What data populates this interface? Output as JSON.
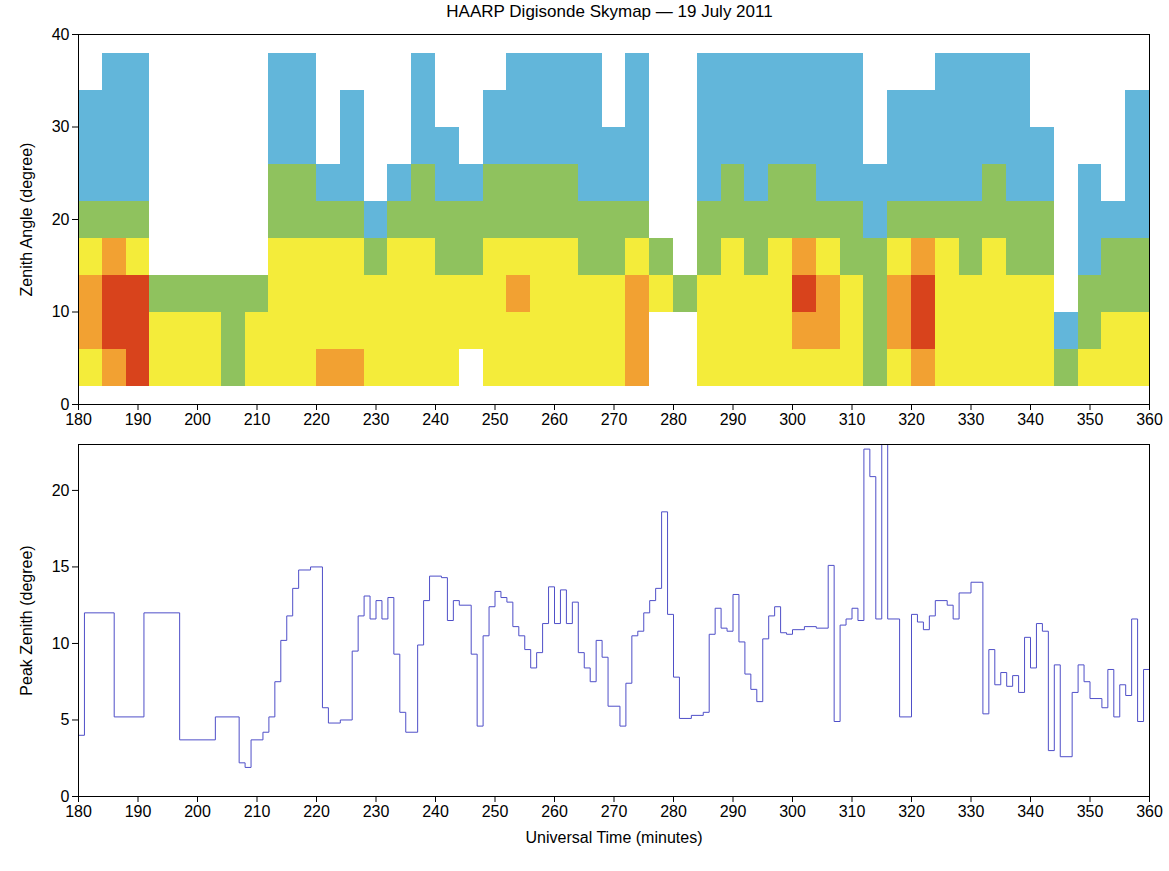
{
  "chart_data": [
    {
      "type": "heatmap",
      "title": "HAARP Digisonde Skymap — 19 July 2011",
      "ylabel": "Zenith Angle (degree)",
      "xlim": [
        180,
        360
      ],
      "xticks": [
        180,
        190,
        200,
        210,
        220,
        230,
        240,
        250,
        260,
        270,
        280,
        290,
        300,
        310,
        320,
        330,
        340,
        350,
        360
      ],
      "ylim": [
        0,
        40
      ],
      "yticks": [
        0,
        10,
        20,
        30,
        40
      ],
      "x_edges": [
        180,
        184,
        188,
        192,
        196,
        200,
        204,
        208,
        212,
        216,
        220,
        224,
        228,
        232,
        236,
        240,
        244,
        248,
        252,
        256,
        260,
        264,
        268,
        272,
        276,
        280,
        284,
        288,
        292,
        296,
        300,
        304,
        308,
        312,
        316,
        320,
        324,
        328,
        332,
        336,
        340,
        344,
        348,
        352,
        356,
        360
      ],
      "y_edges": [
        2,
        6,
        10,
        14,
        18,
        22,
        26,
        30,
        34,
        38
      ],
      "color_levels": [
        1,
        2,
        3,
        4,
        5
      ],
      "colors": [
        "#62b6da",
        "#8fc25e",
        "#f4ec3a",
        "#f2a132",
        "#d8431c"
      ],
      "cells": [
        [
          3,
          4,
          4,
          3,
          2,
          1,
          1,
          1,
          null
        ],
        [
          4,
          5,
          5,
          4,
          2,
          1,
          1,
          1,
          1
        ],
        [
          5,
          5,
          5,
          3,
          2,
          1,
          1,
          1,
          1
        ],
        [
          3,
          3,
          2,
          null,
          null,
          null,
          null,
          null,
          null
        ],
        [
          3,
          3,
          2,
          null,
          null,
          null,
          null,
          null,
          null
        ],
        [
          3,
          3,
          2,
          null,
          null,
          null,
          null,
          null,
          null
        ],
        [
          2,
          2,
          2,
          null,
          null,
          null,
          null,
          null,
          null
        ],
        [
          3,
          3,
          2,
          null,
          null,
          null,
          null,
          null,
          null
        ],
        [
          3,
          3,
          3,
          3,
          2,
          2,
          1,
          1,
          1
        ],
        [
          3,
          3,
          3,
          3,
          2,
          2,
          1,
          1,
          1
        ],
        [
          4,
          3,
          3,
          3,
          2,
          1,
          null,
          null,
          null
        ],
        [
          4,
          3,
          3,
          3,
          2,
          1,
          1,
          1,
          null
        ],
        [
          3,
          3,
          3,
          2,
          1,
          null,
          null,
          null,
          null
        ],
        [
          3,
          3,
          3,
          3,
          2,
          1,
          null,
          null,
          null
        ],
        [
          3,
          3,
          3,
          3,
          2,
          2,
          1,
          1,
          1
        ],
        [
          3,
          3,
          3,
          2,
          2,
          1,
          1,
          null,
          null
        ],
        [
          null,
          3,
          3,
          2,
          2,
          1,
          null,
          null,
          null
        ],
        [
          3,
          3,
          3,
          3,
          2,
          2,
          1,
          1,
          null
        ],
        [
          3,
          3,
          4,
          3,
          2,
          2,
          1,
          1,
          1
        ],
        [
          3,
          3,
          3,
          3,
          2,
          2,
          1,
          1,
          1
        ],
        [
          3,
          3,
          3,
          3,
          2,
          2,
          1,
          1,
          1
        ],
        [
          3,
          3,
          3,
          2,
          2,
          1,
          1,
          1,
          1
        ],
        [
          3,
          3,
          3,
          2,
          2,
          1,
          1,
          null,
          null
        ],
        [
          4,
          4,
          4,
          3,
          2,
          1,
          1,
          1,
          1
        ],
        [
          null,
          null,
          3,
          2,
          null,
          null,
          null,
          null,
          null
        ],
        [
          null,
          null,
          2,
          null,
          null,
          null,
          null,
          null,
          null
        ],
        [
          3,
          3,
          3,
          2,
          2,
          1,
          1,
          1,
          1
        ],
        [
          3,
          3,
          3,
          3,
          2,
          2,
          1,
          1,
          1
        ],
        [
          3,
          3,
          3,
          2,
          2,
          1,
          1,
          1,
          1
        ],
        [
          3,
          3,
          3,
          3,
          2,
          2,
          1,
          1,
          1
        ],
        [
          3,
          4,
          5,
          4,
          2,
          2,
          1,
          1,
          1
        ],
        [
          3,
          4,
          4,
          3,
          2,
          1,
          1,
          1,
          1
        ],
        [
          3,
          3,
          3,
          2,
          2,
          1,
          1,
          1,
          1
        ],
        [
          2,
          2,
          2,
          2,
          1,
          1,
          null,
          null,
          null
        ],
        [
          3,
          4,
          4,
          3,
          2,
          1,
          1,
          1,
          null
        ],
        [
          4,
          5,
          5,
          4,
          2,
          1,
          1,
          1,
          null
        ],
        [
          3,
          3,
          3,
          3,
          2,
          1,
          1,
          1,
          1
        ],
        [
          3,
          3,
          3,
          2,
          2,
          1,
          1,
          1,
          1
        ],
        [
          3,
          3,
          3,
          3,
          2,
          2,
          1,
          1,
          1
        ],
        [
          3,
          3,
          3,
          2,
          2,
          1,
          1,
          1,
          1
        ],
        [
          3,
          3,
          3,
          2,
          2,
          1,
          1,
          null,
          null
        ],
        [
          2,
          1,
          null,
          null,
          null,
          null,
          null,
          null,
          null
        ],
        [
          3,
          2,
          2,
          1,
          1,
          1,
          null,
          null,
          null
        ],
        [
          3,
          3,
          2,
          2,
          1,
          null,
          null,
          null,
          null
        ],
        [
          3,
          3,
          2,
          2,
          1,
          1,
          1,
          1,
          null
        ]
      ]
    },
    {
      "type": "line",
      "line_style": "step",
      "color": "#4f4fc8",
      "xlabel": "Universal Time (minutes)",
      "ylabel": "Peak Zenith (degree)",
      "xlim": [
        180,
        360
      ],
      "xticks": [
        180,
        190,
        200,
        210,
        220,
        230,
        240,
        250,
        260,
        270,
        280,
        290,
        300,
        310,
        320,
        330,
        340,
        350,
        360
      ],
      "ylim": [
        0,
        23
      ],
      "yticks": [
        0,
        5,
        10,
        15,
        20
      ],
      "x": [
        180,
        181,
        186,
        191,
        197,
        203,
        207,
        208,
        209,
        211,
        212,
        213,
        214,
        215,
        216,
        217,
        219,
        221,
        222,
        224,
        226,
        227,
        228,
        229,
        230,
        231,
        232,
        233,
        234,
        235,
        237,
        238,
        239,
        241,
        242,
        243,
        244,
        246,
        247,
        248,
        249,
        250,
        251,
        252,
        253,
        254,
        255,
        256,
        257,
        258,
        259,
        260,
        261,
        262,
        263,
        264,
        265,
        266,
        267,
        268,
        269,
        271,
        272,
        273,
        274,
        275,
        276,
        277,
        278,
        279,
        280,
        281,
        283,
        285,
        286,
        287,
        288,
        289,
        290,
        291,
        292,
        293,
        294,
        295,
        296,
        297,
        298,
        299,
        300,
        302,
        304,
        306,
        307,
        308,
        309,
        310,
        311,
        312,
        313,
        314,
        315,
        316,
        318,
        320,
        321,
        322,
        323,
        324,
        326,
        327,
        328,
        330,
        332,
        333,
        334,
        335,
        336,
        337,
        338,
        339,
        340,
        341,
        342,
        343,
        344,
        345,
        347,
        348,
        349,
        350,
        352,
        353,
        354,
        355,
        356,
        357,
        358,
        359,
        360
      ],
      "values": [
        4,
        12,
        5.2,
        12,
        3.7,
        5.2,
        2.2,
        1.9,
        3.7,
        4.2,
        5.2,
        7.5,
        10.2,
        11.8,
        13.6,
        14.8,
        15,
        5.8,
        4.8,
        5,
        9.5,
        11.8,
        13.1,
        11.6,
        12.8,
        11.6,
        13,
        9.3,
        5.5,
        4.2,
        9.9,
        12.8,
        14.4,
        14.3,
        11.5,
        12.8,
        12.5,
        9.3,
        4.6,
        10.5,
        12.4,
        13.4,
        13,
        12.7,
        11.1,
        10.5,
        9.6,
        8.4,
        9.4,
        11.3,
        13.7,
        11.3,
        13.5,
        11.3,
        12.7,
        9.4,
        8.4,
        7.5,
        10.2,
        9.1,
        5.9,
        4.6,
        7.4,
        10.5,
        10.8,
        12,
        12.8,
        13.6,
        18.6,
        11.9,
        7.8,
        5.1,
        5.3,
        5.5,
        10.6,
        12.3,
        11,
        10.8,
        13.2,
        10.1,
        8,
        7,
        6.2,
        10.3,
        11.8,
        12.4,
        10.7,
        10.6,
        10.9,
        11.1,
        11,
        15.1,
        4.9,
        11.2,
        11.6,
        12.3,
        11.5,
        22.7,
        20.9,
        11.6,
        23,
        11.6,
        5.2,
        11.9,
        11.4,
        10.9,
        11.8,
        12.8,
        12.5,
        11.6,
        13.3,
        14,
        5.4,
        9.6,
        7.3,
        8.1,
        7.2,
        7.9,
        6.8,
        10.4,
        8.4,
        11.3,
        10.8,
        3,
        8.6,
        2.6,
        6.8,
        8.6,
        7.5,
        6.4,
        5.8,
        8.3,
        5.2,
        7.3,
        6.6,
        11.6,
        4.9,
        8.3,
        8
      ]
    }
  ]
}
